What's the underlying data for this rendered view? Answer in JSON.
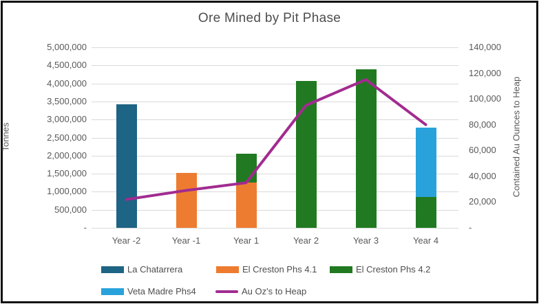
{
  "title": "Ore Mined by Pit Phase",
  "chart_data": {
    "type": "bar",
    "subtype": "stacked-bars-with-line-overlay",
    "title": "Ore Mined by Pit Phase",
    "grid": true,
    "legend_position": "bottom",
    "categories": [
      "Year -2",
      "Year -1",
      "Year 1",
      "Year 2",
      "Year 3",
      "Year 4"
    ],
    "series": [
      {
        "name": "La Chatarrera",
        "color": "#1e6484",
        "values": [
          3430000,
          0,
          0,
          0,
          0,
          0
        ]
      },
      {
        "name": "El Creston Phs 4.1",
        "color": "#ee7c30",
        "values": [
          0,
          1520000,
          1250000,
          0,
          0,
          0
        ]
      },
      {
        "name": "El Creston Phs 4.2",
        "color": "#217a21",
        "values": [
          0,
          0,
          800000,
          4060000,
          4390000,
          850000
        ]
      },
      {
        "name": "Veta Madre Phs4",
        "color": "#29a2db",
        "values": [
          0,
          0,
          0,
          0,
          0,
          1920000
        ]
      }
    ],
    "line_series": {
      "name": "Au Oz's to Heap",
      "color": "#a22b90",
      "axis": "right",
      "values": [
        22000,
        29000,
        35000,
        95000,
        115000,
        80000
      ]
    },
    "left_axis": {
      "label": "Tonnes",
      "min": 0,
      "max": 5000000,
      "tick_step": 500000,
      "tick_labels": [
        "5,000,000",
        "4,500,000",
        "4,000,000",
        "3,500,000",
        "3,000,000",
        "2,500,000",
        "2,000,000",
        "1,500,000",
        "1,000,000",
        "500,000",
        "-"
      ]
    },
    "right_axis": {
      "label": "Contained Au Ounces to Heap",
      "min": 0,
      "max": 140000,
      "tick_step": 20000,
      "tick_labels": [
        "140,000",
        "120,000",
        "100,000",
        "80,000",
        "60,000",
        "40,000",
        "20,000",
        "-"
      ]
    },
    "colors": {
      "gridline": "#d9d9d9",
      "axis_text": "#595959",
      "title_text": "#4d4d4d",
      "border": "#111111"
    }
  }
}
